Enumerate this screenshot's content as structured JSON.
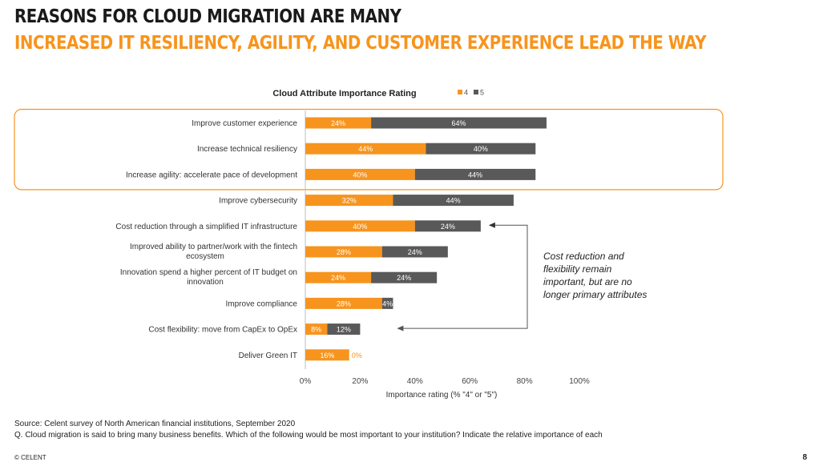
{
  "header": {
    "title": "REASONS FOR CLOUD MIGRATION ARE MANY",
    "subtitle": "INCREASED IT RESILIENCY, AGILITY, AND CUSTOMER EXPERIENCE LEAD THE WAY"
  },
  "chart_data": {
    "type": "bar",
    "orientation": "horizontal",
    "stacked": true,
    "title": "Cloud Attribute Importance Rating",
    "xlabel": "Importance rating (% \"4\" or \"5\")",
    "ylabel": "",
    "xlim": [
      0,
      100
    ],
    "x_ticks": [
      "0%",
      "20%",
      "40%",
      "60%",
      "80%",
      "100%"
    ],
    "x_tick_values": [
      0,
      20,
      40,
      60,
      80,
      100
    ],
    "legend_position": "top-right",
    "categories": [
      [
        "Improve customer experience"
      ],
      [
        "Increase technical resiliency"
      ],
      [
        "Increase agility: accelerate pace of development"
      ],
      [
        "Improve cybersecurity"
      ],
      [
        "Cost reduction through a simplified IT infrastructure"
      ],
      [
        "Improved ability to partner/work with the fintech",
        "ecosystem"
      ],
      [
        "Innovation   spend a higher percent of IT budget on",
        "innovation"
      ],
      [
        "Improve compliance"
      ],
      [
        "Cost flexibility: move from CapEx to OpEx"
      ],
      [
        "Deliver Green IT"
      ]
    ],
    "series": [
      {
        "name": "4",
        "color": "#f7941d",
        "values": [
          24,
          44,
          40,
          32,
          40,
          28,
          24,
          28,
          8,
          16
        ],
        "labels": [
          "24%",
          "44%",
          "40%",
          "32%",
          "40%",
          "28%",
          "24%",
          "28%",
          "8%",
          "16%"
        ]
      },
      {
        "name": "5",
        "color": "#595959",
        "values": [
          64,
          40,
          44,
          44,
          24,
          24,
          24,
          4,
          12,
          0
        ],
        "labels": [
          "64%",
          "40%",
          "44%",
          "44%",
          "24%",
          "24%",
          "24%",
          "4%",
          "12%",
          "0%"
        ]
      }
    ],
    "highlight_rows": [
      0,
      1,
      2
    ],
    "highlight_color": "#f7941d",
    "annotation": {
      "lines": [
        "Cost reduction and",
        "flexibility remain",
        "important, but are no",
        "longer primary attributes"
      ],
      "points_to_rows": [
        4,
        8
      ]
    }
  },
  "footer": {
    "source": "Source: Celent survey of North American financial institutions, September 2020",
    "question": "Q. Cloud migration is said to bring many business benefits. Which of the following would be most important to your institution? Indicate the relative importance of each",
    "copyright": "© CELENT",
    "page_number": "8"
  }
}
